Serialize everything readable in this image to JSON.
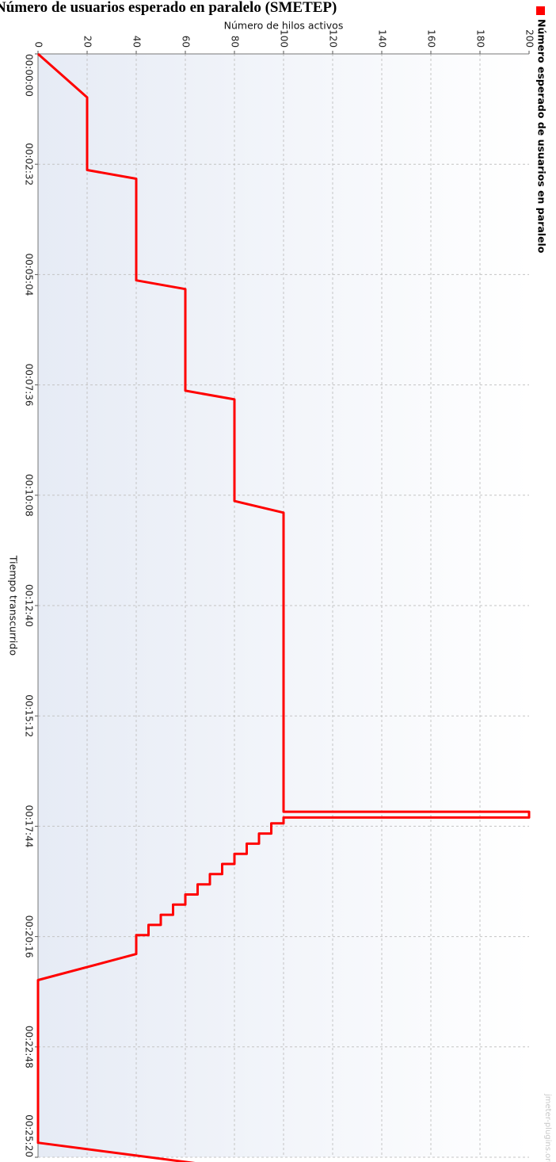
{
  "page": {
    "title": "Número de usuarios esperado en paralelo (SMETEP)"
  },
  "chart_data": {
    "type": "line",
    "title": "Número de usuarios esperado en paralelo (SMETEP)",
    "xlabel": "Tiempo transcurrido",
    "ylabel": "Número de hilos activos",
    "x_unit": "seconds elapsed",
    "x_tick_labels": [
      "00:00:00",
      "00:02:32",
      "00:05:04",
      "00:07:36",
      "00:10:08",
      "00:12:40",
      "00:15:12",
      "00:17:44",
      "00:20:16",
      "00:22:48",
      "00:25:20"
    ],
    "x_ticks": [
      0,
      152,
      304,
      456,
      608,
      760,
      912,
      1064,
      1216,
      1368,
      1520
    ],
    "y_ticks": [
      0,
      20,
      40,
      60,
      80,
      100,
      120,
      140,
      160,
      180,
      200
    ],
    "xlim": [
      0,
      1520
    ],
    "ylim": [
      0,
      200
    ],
    "grid": true,
    "legend_position": "top-left",
    "watermark": "jmeter-plugins.org",
    "colors": {
      "series": "#ff0000",
      "background_start": "#e6ebf5",
      "background_end": "#ffffff",
      "grid": "#c4c4c4"
    },
    "series": [
      {
        "name": "Número esperado de usuarios en paralelo",
        "x": [
          0,
          60,
          160,
          172,
          312,
          324,
          464,
          476,
          616,
          632,
          772,
          908,
          1044,
          1044,
          1052,
          1052,
          1060,
          1060,
          1060,
          1074,
          1074,
          1088,
          1088,
          1102,
          1102,
          1116,
          1116,
          1130,
          1130,
          1144,
          1144,
          1158,
          1158,
          1172,
          1172,
          1186,
          1186,
          1200,
          1200,
          1214,
          1214,
          1240,
          1276,
          1500,
          1588,
          1588
        ],
        "y": [
          0,
          20,
          20,
          40,
          40,
          60,
          60,
          80,
          80,
          100,
          100,
          100,
          100,
          200,
          200,
          100,
          100,
          100,
          95,
          95,
          90,
          90,
          85,
          85,
          80,
          80,
          75,
          75,
          70,
          70,
          65,
          65,
          60,
          60,
          55,
          55,
          50,
          50,
          45,
          45,
          40,
          40,
          0,
          0,
          200,
          0
        ]
      }
    ]
  }
}
